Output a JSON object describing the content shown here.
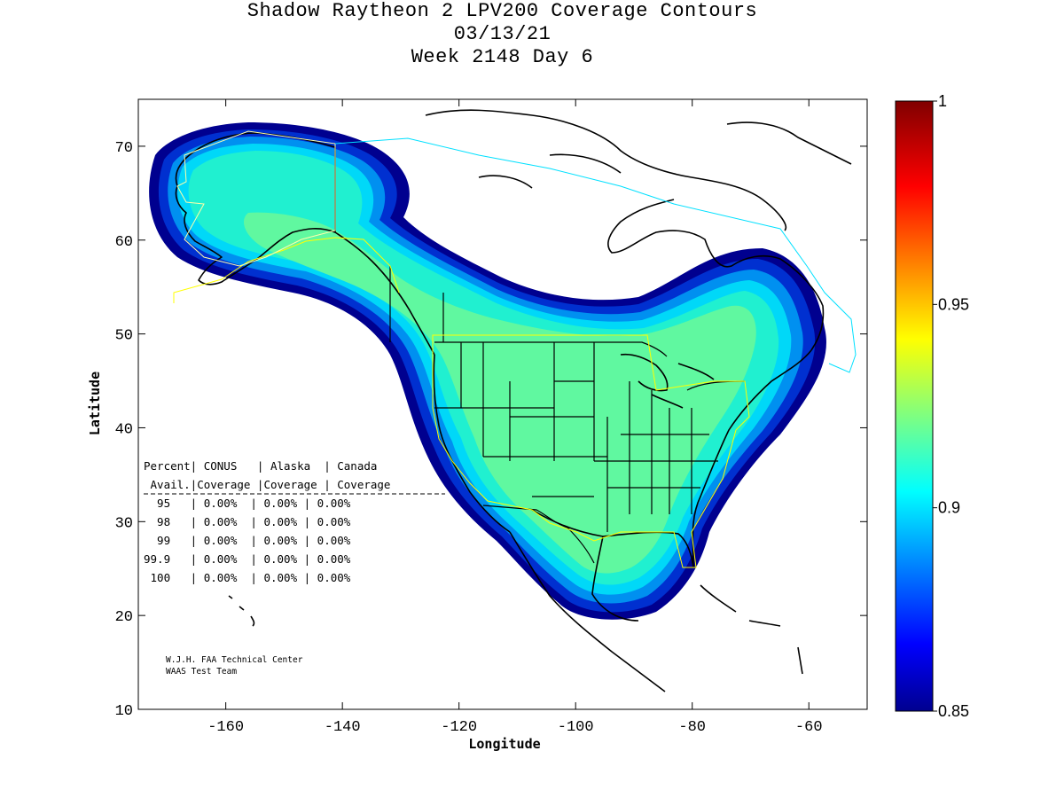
{
  "title": {
    "line1": "Shadow Raytheon 2 LPV200 Coverage Contours",
    "line2": "03/13/21",
    "line3": "Week 2148 Day 6"
  },
  "axes": {
    "xlabel": "Longitude",
    "ylabel": "Latitude",
    "xlim": [
      -175,
      -50
    ],
    "ylim": [
      10,
      75
    ],
    "xticks": [
      -160,
      -140,
      -120,
      -100,
      -80,
      -60
    ],
    "yticks": [
      10,
      20,
      30,
      40,
      50,
      60,
      70
    ]
  },
  "colorbar": {
    "range": [
      0.85,
      1
    ],
    "ticks": [
      {
        "value": 1,
        "label": "1"
      },
      {
        "value": 0.95,
        "label": "0.95"
      },
      {
        "value": 0.9,
        "label": "0.9"
      },
      {
        "value": 0.85,
        "label": "0.85"
      }
    ]
  },
  "stats_table": {
    "header1": "Percent| CONUS   | Alaska  | Canada",
    "header2": " Avail.|Coverage |Coverage | Coverage",
    "rows": [
      "  95   | 0.00%  | 0.00% | 0.00%",
      "  98   | 0.00%  | 0.00% | 0.00%",
      "  99   | 0.00%  | 0.00% | 0.00%",
      "99.9   | 0.00%  | 0.00% | 0.00%",
      " 100   | 0.00%  | 0.00% | 0.00%"
    ]
  },
  "credit": {
    "line1": "W.J.H. FAA Technical Center",
    "line2": "WAAS Test Team"
  },
  "colors": {
    "coverage_outer": "#00008f",
    "coverage_band1": "#0030d0",
    "coverage_band2": "#0090f0",
    "coverage_band3": "#00d8f8",
    "coverage_band4": "#20f0d0",
    "coverage_core": "#60f8a0",
    "coastline": "#000000",
    "service_volume_yellow": "#ffff00",
    "service_volume_cyan": "#00e0ff"
  },
  "chart_data": {
    "type": "heatmap",
    "title": "Shadow Raytheon 2 LPV200 Coverage Contours",
    "xlabel": "Longitude",
    "ylabel": "Latitude",
    "xlim": [
      -175,
      -50
    ],
    "ylim": [
      10,
      75
    ],
    "colorbar_range": [
      0.85,
      1
    ],
    "colorbar_ticks": [
      0.85,
      0.9,
      0.95,
      1
    ],
    "approx_max_availability": 0.91
  }
}
